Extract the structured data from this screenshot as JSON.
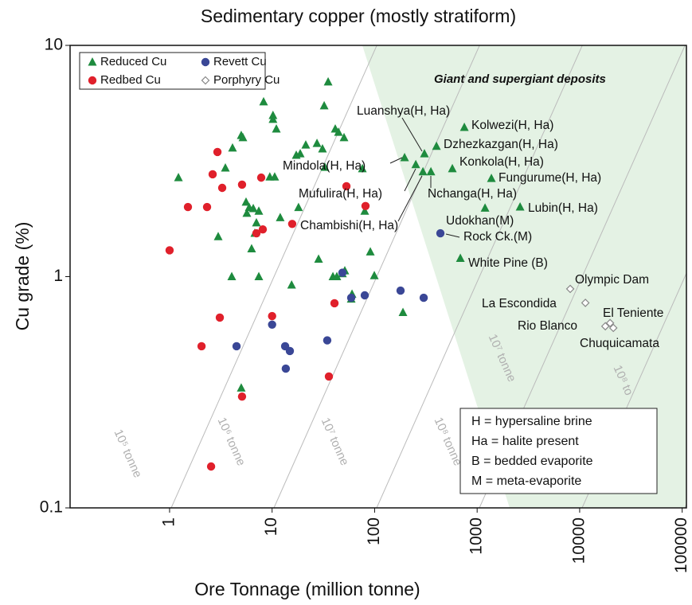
{
  "chart_data": {
    "type": "scatter",
    "title": "Sedimentary copper (mostly stratiform)",
    "xlabel": "Ore Tonnage (million tonne)",
    "ylabel": "Cu grade (%)",
    "log_x": true,
    "log_y": true,
    "xlim": [
      0.107,
      110000
    ],
    "ylim": [
      0.1,
      10
    ],
    "xticks": [
      1,
      10,
      100,
      1000,
      10000,
      100000
    ],
    "yticks": [
      0.1,
      1,
      10
    ],
    "legend": "upper left",
    "series": [
      {
        "name": "Reduced Cu",
        "color": "#1e8b3e",
        "marker": "triangle",
        "x": [
          1.22,
          4.11,
          3.5,
          2.98,
          4.04,
          5.0,
          5.19,
          8.26,
          10.2,
          10.2,
          11.0,
          9.5,
          10.6,
          5.57,
          5.67,
          5.98,
          6.55,
          7.03,
          7.42,
          7.42,
          6.31,
          6.78,
          12.0,
          15.5,
          17.2,
          18.8,
          18.1,
          21.3,
          27.4,
          31.0,
          32.7,
          32.2,
          35.2,
          41.3,
          44.4,
          50.3,
          28.4,
          39.2,
          42.8,
          48.5,
          51.2,
          59.1,
          60.2,
          75.9,
          80.1,
          90.8,
          99.3,
          189,
          5.0,
          306,
          750,
          401,
          573,
          1377,
          2624,
          196,
          252,
          296,
          354,
          686,
          1194
        ],
        "values": [
          2.68,
          3.6,
          2.95,
          1.49,
          1.0,
          4.08,
          3.99,
          5.7,
          4.98,
          4.79,
          4.35,
          2.7,
          2.7,
          2.1,
          1.88,
          1.99,
          1.97,
          1.71,
          1.92,
          1.0,
          1.32,
          1.54,
          1.8,
          0.92,
          3.35,
          3.4,
          1.99,
          3.71,
          3.77,
          3.57,
          2.97,
          5.48,
          6.95,
          4.35,
          4.21,
          3.99,
          1.19,
          1.0,
          1.0,
          1.03,
          1.06,
          0.8,
          0.84,
          2.93,
          1.92,
          1.28,
          1.01,
          0.7,
          0.33,
          3.4,
          4.42,
          3.66,
          2.93,
          2.66,
          2.0,
          3.27,
          3.05,
          2.84,
          2.84,
          1.2,
          1.98
        ]
      },
      {
        "name": "Revett Cu",
        "color": "#3a4796",
        "marker": "circle",
        "x": [
          4.5,
          10.0,
          13.4,
          14.9,
          13.6,
          34.5,
          48.5,
          59.1,
          80.1,
          179,
          301,
          438
        ],
        "values": [
          0.5,
          0.62,
          0.5,
          0.477,
          0.4,
          0.53,
          1.04,
          0.81,
          0.83,
          0.87,
          0.81,
          1.54
        ]
      },
      {
        "name": "Redbed Cu",
        "color": "#e0202b",
        "marker": "circle",
        "x": [
          1.0,
          1.51,
          2.32,
          2.63,
          2.93,
          3.26,
          5.09,
          3.09,
          2.05,
          2.54,
          5.09,
          7.03,
          8.11,
          7.83,
          15.7,
          10.0,
          40.6,
          35.8,
          53.1,
          81.5
        ],
        "values": [
          1.3,
          2.0,
          2.0,
          2.77,
          3.46,
          2.42,
          2.5,
          0.665,
          0.5,
          0.151,
          0.303,
          1.54,
          1.6,
          2.68,
          1.69,
          0.675,
          0.767,
          0.37,
          2.46,
          2.02
        ]
      },
      {
        "name": "Porphyry Cu",
        "color": "#888888",
        "marker": "diamond",
        "x": [
          8090,
          11370,
          17800,
          19800,
          21300
        ],
        "values": [
          0.885,
          0.77,
          0.61,
          0.63,
          0.6
        ]
      }
    ],
    "annotations": [
      "Giant and supergiant deposits",
      "Luanshya(H, Ha)",
      "Kolwezi(H, Ha)",
      "Dzhezkazgan(H, Ha)",
      "Konkola(H, Ha)",
      "Fungurume(H, Ha)",
      "Mindola(H, Ha)",
      "Mufulira(H, Ha)",
      "Nchanga(H, Ha)",
      "Lubin(H, Ha)",
      "Chambishi(H, Ha)",
      "Udokhan(M)",
      "Rock Ck.(M)",
      "White Pine (B)",
      "Olympic Dam",
      "La Escondida",
      "El Teniente",
      "Rio Blanco",
      "Chuquicamata"
    ],
    "line_labels": [
      "10⁵ tonne",
      "10⁶ tonne",
      "10⁷ tonne",
      "10⁸ tonne",
      "10⁷ tonne",
      "10⁸ to"
    ],
    "key": [
      "H = hypersaline brine",
      "Ha = halite present",
      "B = bedded evaporite",
      "M = meta-evaporite"
    ]
  }
}
